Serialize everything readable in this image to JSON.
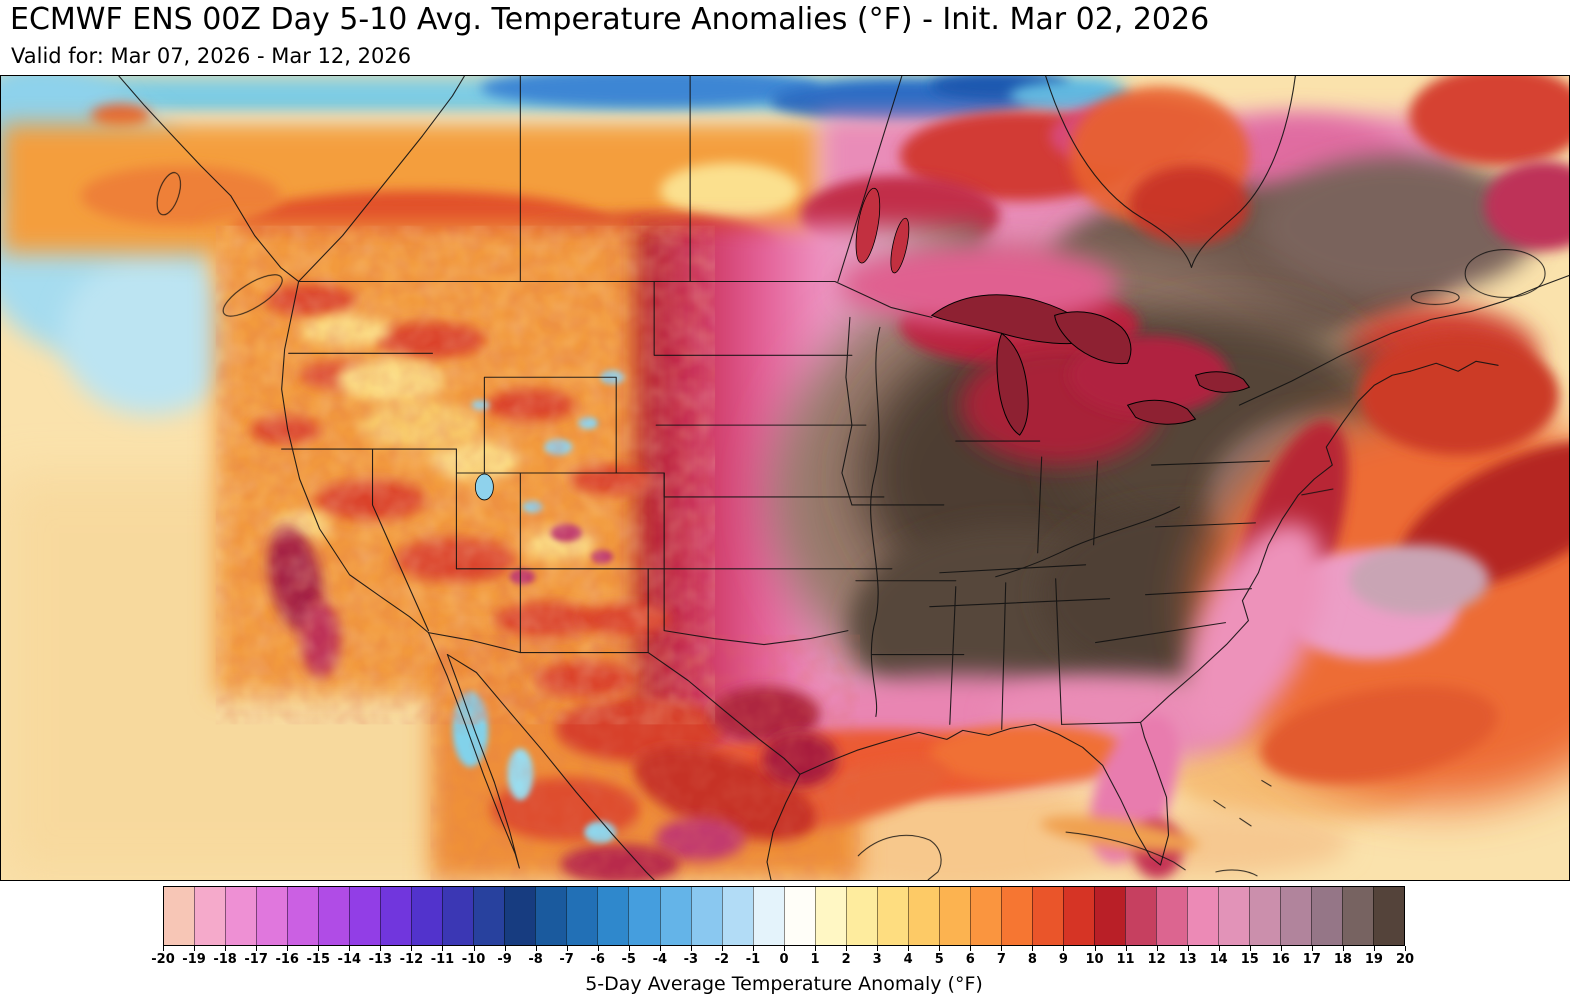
{
  "header": {
    "title": "ECMWF ENS 00Z Day 5-10 Avg. Temperature Anomalies (°F) - Init. Mar 02, 2026",
    "subtitle": "Valid for: Mar 07, 2026 - Mar 12, 2026"
  },
  "colorbar": {
    "label": "5-Day Average Temperature Anomaly (°F)",
    "tick_labels": [
      "-20",
      "-19",
      "-18",
      "-17",
      "-16",
      "-15",
      "-14",
      "-13",
      "-12",
      "-11",
      "-10",
      "-9",
      "-8",
      "-7",
      "-6",
      "-5",
      "-4",
      "-3",
      "-2",
      "-1",
      "0",
      "1",
      "2",
      "3",
      "4",
      "5",
      "6",
      "7",
      "8",
      "9",
      "10",
      "11",
      "12",
      "13",
      "14",
      "15",
      "16",
      "17",
      "18",
      "19",
      "20"
    ],
    "segment_colors": [
      "#f7c6b6",
      "#f5aacb",
      "#ee90d4",
      "#e077dd",
      "#cb60e3",
      "#b04ce6",
      "#923ee6",
      "#7136dd",
      "#5233cc",
      "#3b37b4",
      "#28419e",
      "#173c80",
      "#1a5a9e",
      "#2270b6",
      "#2f88cc",
      "#459ede",
      "#64b4e8",
      "#8ac8f0",
      "#b2dcf6",
      "#e4f3fb",
      "#fffef8",
      "#fff7c4",
      "#feec9e",
      "#fedd80",
      "#fdca66",
      "#fcb350",
      "#fa953f",
      "#f67632",
      "#ea552a",
      "#d63425",
      "#b91f27",
      "#c64060",
      "#dc6590",
      "#ec8ab6",
      "#e293b8",
      "#cb8fac",
      "#b1849c",
      "#957687",
      "#776361",
      "#54433a"
    ]
  }
}
